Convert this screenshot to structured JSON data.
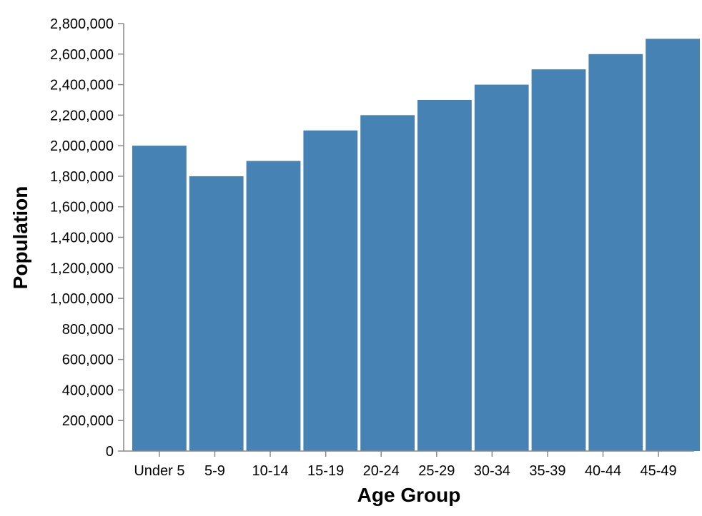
{
  "chart_data": {
    "type": "bar",
    "title": "",
    "xlabel": "Age Group",
    "ylabel": "Population",
    "categories": [
      "Under 5",
      "5-9",
      "10-14",
      "15-19",
      "20-24",
      "25-29",
      "30-34",
      "35-39",
      "40-44",
      "45-49"
    ],
    "values": [
      2000000,
      1800000,
      1900000,
      2100000,
      2200000,
      2300000,
      2400000,
      2500000,
      2600000,
      2700000
    ],
    "ylim": [
      0,
      2800000
    ],
    "yticks": [
      0,
      200000,
      400000,
      600000,
      800000,
      1000000,
      1200000,
      1400000,
      1600000,
      1800000,
      2000000,
      2200000,
      2400000,
      2600000,
      2800000
    ],
    "ytick_labels": [
      "0",
      "200,000",
      "400,000",
      "600,000",
      "800,000",
      "1,000,000",
      "1,200,000",
      "1,400,000",
      "1,600,000",
      "1,800,000",
      "2,000,000",
      "2,200,000",
      "2,400,000",
      "2,600,000",
      "2,800,000"
    ],
    "grid": false,
    "legend": "none",
    "colors": {
      "bar": "#4682b4",
      "axis": "#888888"
    }
  }
}
